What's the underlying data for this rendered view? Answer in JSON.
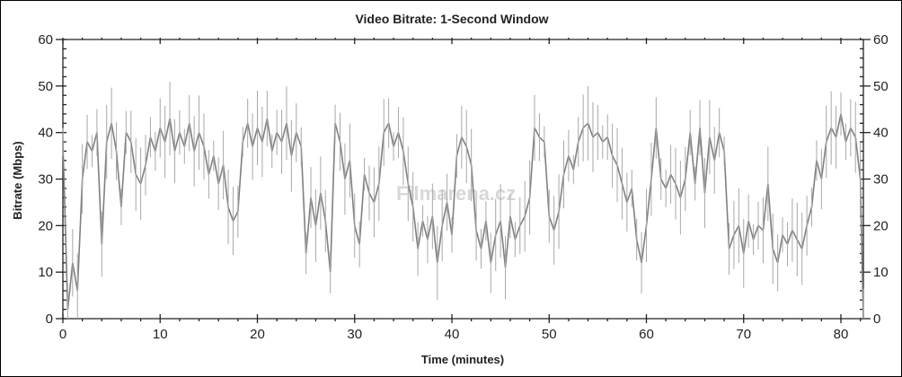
{
  "chart_data": {
    "type": "line",
    "title": "Video Bitrate: 1-Second Window",
    "xlabel": "Time (minutes)",
    "ylabel": "Bitrate (Mbps)",
    "xlim": [
      0,
      82.3
    ],
    "ylim": [
      0,
      60
    ],
    "x_ticks": [
      "0",
      "10",
      "20",
      "30",
      "40",
      "50",
      "60",
      "70",
      "80"
    ],
    "y_ticks": [
      "0",
      "10",
      "20",
      "30",
      "40",
      "50",
      "60"
    ],
    "y_axis_right_mirrored": true,
    "grid": false,
    "legend": "none",
    "series_color": "#808080",
    "watermark": "Filmarena.cz",
    "points": [
      [
        0,
        38
      ],
      [
        0.5,
        2
      ],
      [
        1,
        12
      ],
      [
        1.5,
        6
      ],
      [
        2,
        30
      ],
      [
        2.5,
        38
      ],
      [
        3,
        36
      ],
      [
        3.5,
        40
      ],
      [
        4,
        16
      ],
      [
        4.5,
        38
      ],
      [
        5,
        42
      ],
      [
        5.5,
        36
      ],
      [
        6,
        24
      ],
      [
        6.5,
        40
      ],
      [
        7,
        38
      ],
      [
        7.5,
        31
      ],
      [
        8,
        29
      ],
      [
        8.5,
        33
      ],
      [
        9,
        39
      ],
      [
        9.5,
        36
      ],
      [
        10,
        41
      ],
      [
        10.5,
        38
      ],
      [
        11,
        43
      ],
      [
        11.5,
        36
      ],
      [
        12,
        40
      ],
      [
        12.5,
        37
      ],
      [
        13,
        42
      ],
      [
        13.5,
        36
      ],
      [
        14,
        40
      ],
      [
        14.5,
        37
      ],
      [
        15,
        31
      ],
      [
        15.5,
        35
      ],
      [
        16,
        29
      ],
      [
        16.5,
        33
      ],
      [
        17,
        24
      ],
      [
        17.5,
        21
      ],
      [
        18,
        23
      ],
      [
        18.5,
        38
      ],
      [
        19,
        42
      ],
      [
        19.5,
        37
      ],
      [
        20,
        41
      ],
      [
        20.5,
        38
      ],
      [
        21,
        43
      ],
      [
        21.5,
        36
      ],
      [
        22,
        40
      ],
      [
        22.5,
        38
      ],
      [
        23,
        42
      ],
      [
        23.5,
        35
      ],
      [
        24,
        40
      ],
      [
        24.5,
        37
      ],
      [
        25,
        14
      ],
      [
        25.5,
        26
      ],
      [
        26,
        20
      ],
      [
        26.5,
        27
      ],
      [
        27,
        21
      ],
      [
        27.5,
        10
      ],
      [
        28,
        42
      ],
      [
        28.5,
        38
      ],
      [
        29,
        30
      ],
      [
        29.5,
        34
      ],
      [
        30,
        20
      ],
      [
        30.5,
        16
      ],
      [
        31,
        31
      ],
      [
        31.5,
        27
      ],
      [
        32,
        25
      ],
      [
        32.5,
        29
      ],
      [
        33,
        40
      ],
      [
        33.5,
        42
      ],
      [
        34,
        37
      ],
      [
        34.5,
        40
      ],
      [
        35,
        36
      ],
      [
        35.5,
        29
      ],
      [
        36,
        24
      ],
      [
        36.5,
        15
      ],
      [
        37,
        21
      ],
      [
        37.5,
        17
      ],
      [
        38,
        22
      ],
      [
        38.5,
        12
      ],
      [
        39,
        20
      ],
      [
        39.5,
        25
      ],
      [
        40,
        18
      ],
      [
        40.5,
        35
      ],
      [
        41,
        39
      ],
      [
        41.5,
        37
      ],
      [
        42,
        33
      ],
      [
        42.5,
        19
      ],
      [
        43,
        15
      ],
      [
        43.5,
        21
      ],
      [
        44,
        12
      ],
      [
        44.5,
        18
      ],
      [
        45,
        21
      ],
      [
        45.5,
        11
      ],
      [
        46,
        22
      ],
      [
        46.5,
        17
      ],
      [
        47,
        20
      ],
      [
        47.5,
        22
      ],
      [
        48,
        26
      ],
      [
        48.5,
        41
      ],
      [
        49,
        39
      ],
      [
        49.5,
        38
      ],
      [
        50,
        22
      ],
      [
        50.5,
        19
      ],
      [
        51,
        23
      ],
      [
        51.5,
        31
      ],
      [
        52,
        35
      ],
      [
        52.5,
        32
      ],
      [
        53,
        38
      ],
      [
        53.5,
        41
      ],
      [
        54,
        42
      ],
      [
        54.5,
        39
      ],
      [
        55,
        40
      ],
      [
        55.5,
        38
      ],
      [
        56,
        39
      ],
      [
        56.5,
        35
      ],
      [
        57,
        33
      ],
      [
        57.5,
        29
      ],
      [
        58,
        25
      ],
      [
        58.5,
        28
      ],
      [
        59,
        17
      ],
      [
        59.5,
        12
      ],
      [
        60,
        20
      ],
      [
        60.5,
        30
      ],
      [
        61,
        41
      ],
      [
        61.5,
        30
      ],
      [
        62,
        28
      ],
      [
        62.5,
        31
      ],
      [
        63,
        29
      ],
      [
        63.5,
        26
      ],
      [
        64,
        30
      ],
      [
        64.5,
        40
      ],
      [
        65,
        29
      ],
      [
        65.5,
        41
      ],
      [
        66,
        27
      ],
      [
        66.5,
        39
      ],
      [
        67,
        34
      ],
      [
        67.5,
        40
      ],
      [
        68,
        36
      ],
      [
        68.5,
        15
      ],
      [
        69,
        18
      ],
      [
        69.5,
        20
      ],
      [
        70,
        14
      ],
      [
        70.5,
        21
      ],
      [
        71,
        17
      ],
      [
        71.5,
        20
      ],
      [
        72,
        19
      ],
      [
        72.5,
        29
      ],
      [
        73,
        15
      ],
      [
        73.5,
        12
      ],
      [
        74,
        18
      ],
      [
        74.5,
        16
      ],
      [
        75,
        19
      ],
      [
        75.5,
        17
      ],
      [
        76,
        15
      ],
      [
        76.5,
        20
      ],
      [
        77,
        24
      ],
      [
        77.5,
        34
      ],
      [
        78,
        30
      ],
      [
        78.5,
        38
      ],
      [
        79,
        41
      ],
      [
        79.5,
        39
      ],
      [
        80,
        44
      ],
      [
        80.5,
        38
      ],
      [
        81,
        41
      ],
      [
        81.5,
        39
      ],
      [
        82,
        30
      ],
      [
        82.3,
        0
      ]
    ]
  }
}
